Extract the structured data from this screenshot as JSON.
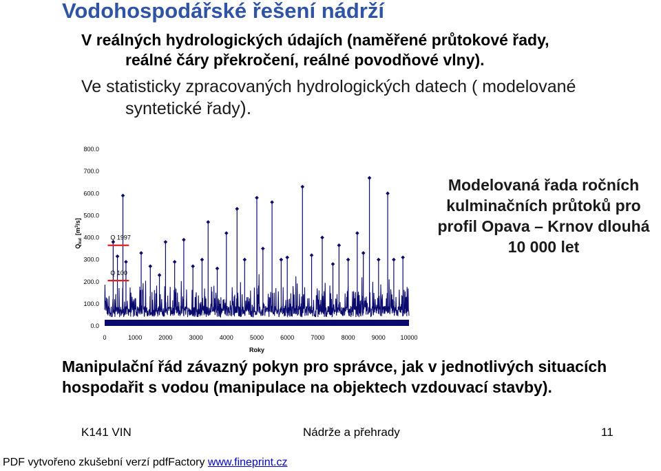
{
  "slide": {
    "title": "Vodohospodářské řešení nádrží",
    "bullet1_line1": "V reálných hydrologických údajích (naměřené průtokové řady,",
    "bullet1_line2": "reálné čáry překročení, reálné povodňové vlny).",
    "bullet2_line1": "Ve statisticky zpracovaných hydrologických datech ( modelované",
    "bullet2_line2": "syntetické řady",
    "bullet2_end": ").",
    "caption_line1": "Modelovaná řada ročních",
    "caption_line2": "kulminačních průtoků pro",
    "caption_line3": "profil Opava – Krnov dlouhá",
    "caption_line4": "10 000 let",
    "manipulation": "Manipulační řád závazný pokyn pro správce, jak v jednotlivých situacích hospodařit s vodou (manipulace na objektech vzdouvací stavby).",
    "footer_left": "K141 VIN",
    "footer_center": "Nádrže a přehrady",
    "footer_right": "11",
    "pdf_note": "PDF vytvořeno zkušební verzí pdfFactory ",
    "pdf_link": "www.fineprint.cz"
  },
  "chart_data": {
    "type": "line",
    "xlabel": "Roky",
    "ylabel_main": "Q",
    "ylabel_sub": "kul",
    "ylabel_unit_pre": "[m",
    "ylabel_unit_sup": "3",
    "ylabel_unit_post": "/s]",
    "xlim": [
      0,
      10000
    ],
    "ylim": [
      0,
      800
    ],
    "x_ticks": [
      "0",
      "1000",
      "2000",
      "3000",
      "4000",
      "5000",
      "6000",
      "7000",
      "8000",
      "9000",
      "10000"
    ],
    "y_ticks": [
      "0.0",
      "100.0",
      "200.0",
      "300.0",
      "400.0",
      "500.0",
      "600.0",
      "700.0",
      "800.0"
    ],
    "series_color": "#0a0a6e",
    "reference_color": "#e02020",
    "reference_lines": [
      {
        "label": "Q 1997",
        "y": 365,
        "x_range": [
          100,
          800
        ]
      },
      {
        "label": "Q 100",
        "y": 205,
        "x_range": [
          100,
          800
        ]
      }
    ],
    "peaks": [
      {
        "x": 280,
        "y": 380
      },
      {
        "x": 420,
        "y": 315
      },
      {
        "x": 600,
        "y": 590
      },
      {
        "x": 700,
        "y": 290
      },
      {
        "x": 1200,
        "y": 330
      },
      {
        "x": 1500,
        "y": 270
      },
      {
        "x": 1800,
        "y": 230
      },
      {
        "x": 2000,
        "y": 380
      },
      {
        "x": 2300,
        "y": 290
      },
      {
        "x": 2600,
        "y": 390
      },
      {
        "x": 2900,
        "y": 270
      },
      {
        "x": 3200,
        "y": 300
      },
      {
        "x": 3400,
        "y": 470
      },
      {
        "x": 3700,
        "y": 260
      },
      {
        "x": 4000,
        "y": 420
      },
      {
        "x": 4350,
        "y": 530
      },
      {
        "x": 4600,
        "y": 300
      },
      {
        "x": 5000,
        "y": 580
      },
      {
        "x": 5200,
        "y": 350
      },
      {
        "x": 5500,
        "y": 560
      },
      {
        "x": 5800,
        "y": 300
      },
      {
        "x": 6000,
        "y": 310
      },
      {
        "x": 6500,
        "y": 630
      },
      {
        "x": 6800,
        "y": 320
      },
      {
        "x": 7150,
        "y": 400
      },
      {
        "x": 7500,
        "y": 280
      },
      {
        "x": 7700,
        "y": 365
      },
      {
        "x": 8000,
        "y": 300
      },
      {
        "x": 8300,
        "y": 420
      },
      {
        "x": 8500,
        "y": 330
      },
      {
        "x": 8700,
        "y": 670
      },
      {
        "x": 9000,
        "y": 300
      },
      {
        "x": 9300,
        "y": 600
      },
      {
        "x": 9500,
        "y": 300
      },
      {
        "x": 9800,
        "y": 310
      }
    ]
  }
}
